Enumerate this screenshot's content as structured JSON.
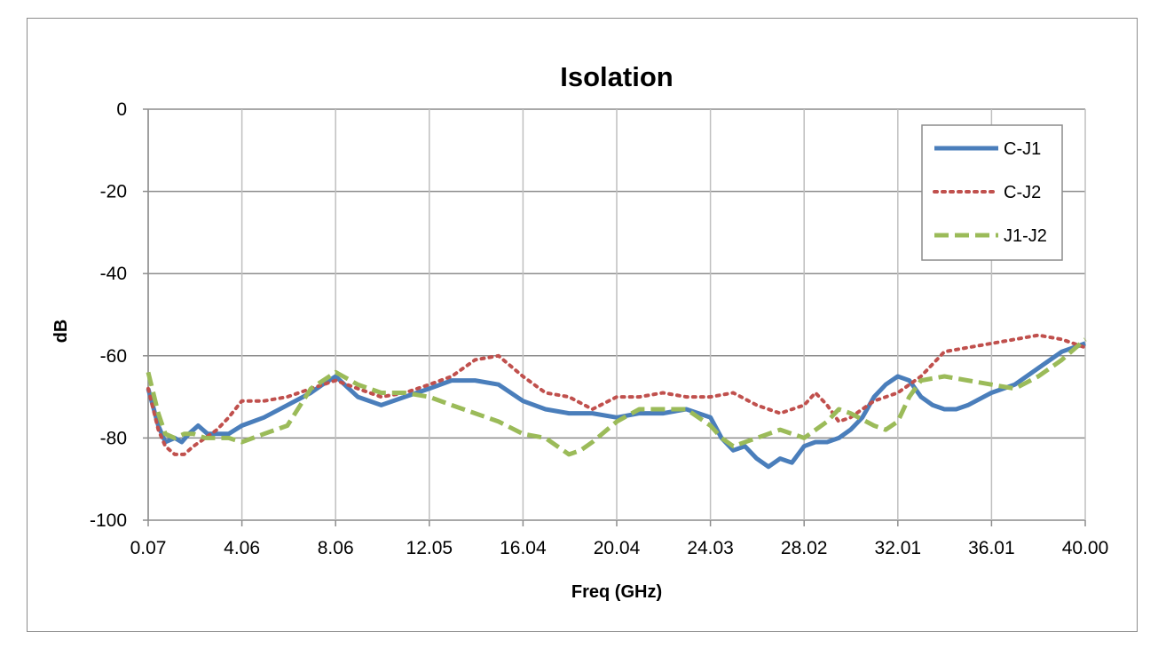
{
  "chart_data": {
    "type": "line",
    "title": "Isolation",
    "xlabel": "Freq (GHz)",
    "ylabel": "dB",
    "xlim": [
      0.07,
      40.0
    ],
    "ylim": [
      -100,
      0
    ],
    "x_ticks": [
      "0.07",
      "4.06",
      "8.06",
      "12.05",
      "16.04",
      "20.04",
      "24.03",
      "28.02",
      "32.01",
      "36.01",
      "40.00"
    ],
    "y_ticks": [
      "0",
      "-20",
      "-40",
      "-60",
      "-80",
      "-100"
    ],
    "grid": true,
    "legend_position": "top-right",
    "series": [
      {
        "name": "C-J1",
        "color": "#4a7ebb",
        "style": "solid",
        "x": [
          0.07,
          0.5,
          0.8,
          1.2,
          1.5,
          1.8,
          2.2,
          2.6,
          3.0,
          3.5,
          4.06,
          5.0,
          6.0,
          7.0,
          7.5,
          8.06,
          9.0,
          10.0,
          11.0,
          12.05,
          13.0,
          14.0,
          15.0,
          16.04,
          17.0,
          18.0,
          19.0,
          20.04,
          21.0,
          22.0,
          23.0,
          24.03,
          24.5,
          25.0,
          25.5,
          26.0,
          26.5,
          27.0,
          27.5,
          28.02,
          28.5,
          29.0,
          29.5,
          30.0,
          30.5,
          31.0,
          31.5,
          32.01,
          32.5,
          33.0,
          33.5,
          34.0,
          34.5,
          35.0,
          36.0,
          37.0,
          38.0,
          39.0,
          40.0
        ],
        "values": [
          -68,
          -77,
          -81,
          -80,
          -81,
          -79,
          -77,
          -79,
          -79,
          -79,
          -77,
          -75,
          -72,
          -69,
          -67,
          -65,
          -70,
          -72,
          -70,
          -68,
          -66,
          -66,
          -67,
          -71,
          -73,
          -74,
          -74,
          -75,
          -74,
          -74,
          -73,
          -75,
          -80,
          -83,
          -82,
          -85,
          -87,
          -85,
          -86,
          -82,
          -81,
          -81,
          -80,
          -78,
          -75,
          -70,
          -67,
          -65,
          -66,
          -70,
          -72,
          -73,
          -73,
          -72,
          -69,
          -67,
          -63,
          -59,
          -57
        ]
      },
      {
        "name": "C-J2",
        "color": "#c0504d",
        "style": "dotted",
        "x": [
          0.07,
          0.5,
          0.8,
          1.2,
          1.6,
          2.0,
          2.5,
          3.0,
          3.5,
          4.06,
          5.0,
          6.0,
          7.0,
          8.06,
          9.0,
          10.0,
          11.0,
          12.05,
          13.0,
          14.0,
          15.0,
          16.04,
          17.0,
          18.0,
          19.0,
          20.04,
          21.0,
          22.0,
          23.0,
          24.03,
          25.0,
          26.0,
          27.0,
          28.02,
          28.5,
          29.0,
          29.5,
          30.0,
          31.0,
          32.01,
          33.0,
          34.0,
          35.0,
          36.0,
          37.0,
          38.0,
          39.0,
          40.0
        ],
        "values": [
          -68,
          -78,
          -82,
          -84,
          -84,
          -82,
          -80,
          -78,
          -75,
          -71,
          -71,
          -70,
          -68,
          -66,
          -68,
          -70,
          -69,
          -67,
          -65,
          -61,
          -60,
          -65,
          -69,
          -70,
          -73,
          -70,
          -70,
          -69,
          -70,
          -70,
          -69,
          -72,
          -74,
          -72,
          -69,
          -72,
          -76,
          -75,
          -71,
          -69,
          -65,
          -59,
          -58,
          -57,
          -56,
          -55,
          -56,
          -58
        ]
      },
      {
        "name": "J1-J2",
        "color": "#9bbb59",
        "style": "dashed",
        "x": [
          0.07,
          0.5,
          0.8,
          1.2,
          1.6,
          2.0,
          2.5,
          3.0,
          3.5,
          4.06,
          5.0,
          6.0,
          7.0,
          8.06,
          9.0,
          10.0,
          11.0,
          12.05,
          13.0,
          14.0,
          15.0,
          16.04,
          17.0,
          18.0,
          18.5,
          19.0,
          20.04,
          21.0,
          22.0,
          23.0,
          24.03,
          24.5,
          25.0,
          26.0,
          27.0,
          28.02,
          29.0,
          29.5,
          30.0,
          31.0,
          31.5,
          32.01,
          32.5,
          33.0,
          34.0,
          35.0,
          36.0,
          37.0,
          38.0,
          39.0,
          40.0
        ],
        "values": [
          -64,
          -74,
          -79,
          -80,
          -79,
          -79,
          -80,
          -80,
          -80,
          -81,
          -79,
          -77,
          -68,
          -64,
          -67,
          -69,
          -69,
          -70,
          -72,
          -74,
          -76,
          -79,
          -80,
          -84,
          -83,
          -81,
          -76,
          -73,
          -73,
          -73,
          -77,
          -80,
          -82,
          -80,
          -78,
          -80,
          -76,
          -73,
          -74,
          -77,
          -78,
          -76,
          -70,
          -66,
          -65,
          -66,
          -67,
          -68,
          -65,
          -61,
          -56
        ]
      }
    ]
  }
}
